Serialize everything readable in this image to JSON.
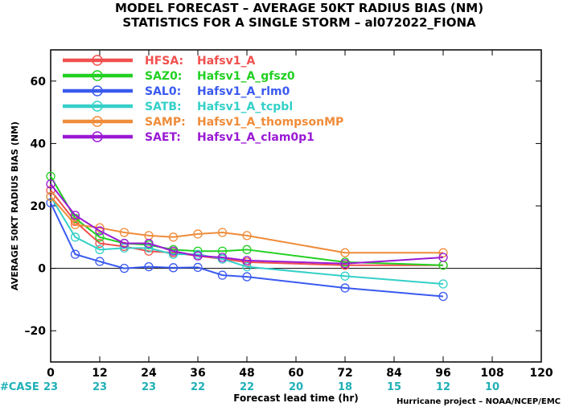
{
  "title_line1": "MODEL FORECAST – AVERAGE 50KT RADIUS BIAS (NM)",
  "title_line2": "STATISTICS FOR A SINGLE STORM – al072022_FIONA",
  "case_label": "#CASE",
  "credit": "Hurricane project – NOAA/NCEP/EMC",
  "case_color": "#1fb0b6",
  "chart_data": {
    "type": "line",
    "xlabel": "Forecast lead time (hr)",
    "ylabel": "AVERAGE 50KT RADIUS BIAS (NM)",
    "xlim": [
      0,
      120
    ],
    "ylim": [
      -30,
      70
    ],
    "x_ticks": [
      0,
      12,
      24,
      36,
      48,
      60,
      72,
      84,
      96,
      108,
      120
    ],
    "y_ticks": [
      -20,
      0,
      20,
      40,
      60
    ],
    "x_tick_labels": [
      "0",
      "12",
      "24",
      "36",
      "48",
      "60",
      "72",
      "84",
      "96",
      "108",
      "120"
    ],
    "y_tick_labels": [
      "–20",
      "0",
      "20",
      "40",
      "60"
    ],
    "zero_line": true,
    "grid": false,
    "legend_position": "top-left",
    "case_counts": [
      {
        "x": 0,
        "n": "23"
      },
      {
        "x": 12,
        "n": "23"
      },
      {
        "x": 24,
        "n": "23"
      },
      {
        "x": 36,
        "n": "22"
      },
      {
        "x": 48,
        "n": "22"
      },
      {
        "x": 60,
        "n": "20"
      },
      {
        "x": 72,
        "n": "18"
      },
      {
        "x": 84,
        "n": "15"
      },
      {
        "x": 96,
        "n": "12"
      },
      {
        "x": 108,
        "n": "10"
      }
    ],
    "x": [
      0,
      6,
      12,
      18,
      24,
      30,
      36,
      42,
      48,
      72,
      96
    ],
    "series": [
      {
        "code": "HFSA:",
        "name": "Hafsv1_A",
        "color": "#f0504e",
        "values": [
          25,
          15,
          8,
          7,
          5.5,
          5,
          4,
          3,
          2,
          1,
          1
        ]
      },
      {
        "code": "SAZ0:",
        "name": "Hafsv1_A_gfsz0",
        "color": "#22d022",
        "values": [
          29.5,
          16,
          10,
          8,
          7.5,
          6,
          5.5,
          5.5,
          6,
          2,
          1
        ]
      },
      {
        "code": "SAL0:",
        "name": "Hafsv1_A_rlm0",
        "color": "#3a5aef",
        "values": [
          21,
          4.5,
          2.2,
          0,
          0.5,
          0.2,
          0.3,
          -2.2,
          -2.7,
          -6.3,
          -9
        ]
      },
      {
        "code": "SATB:",
        "name": "Hafsv1_A_tcpbl",
        "color": "#34d0c8",
        "values": [
          23,
          10,
          6,
          6.5,
          6.5,
          4.5,
          4.5,
          3,
          0.5,
          -2.5,
          -5
        ]
      },
      {
        "code": "SAMP:",
        "name": "Hafsv1_A_thompsonMP",
        "color": "#ef8c3a",
        "values": [
          23,
          14,
          13,
          11.5,
          10.5,
          10,
          11,
          11.5,
          10.5,
          5,
          5
        ]
      },
      {
        "code": "SAET:",
        "name": "Hafsv1_A_clam0p1",
        "color": "#9a1ad4",
        "values": [
          27,
          17,
          12,
          8,
          8,
          5.5,
          4,
          3.5,
          2.5,
          1.5,
          3.5
        ]
      }
    ]
  }
}
